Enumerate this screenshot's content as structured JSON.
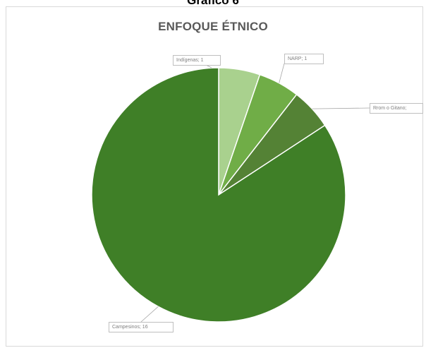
{
  "figure": {
    "caption": "Gráfico 6"
  },
  "chart_data": {
    "type": "pie",
    "title": "ENFOQUE ÉTNICO",
    "categories": [
      "Indígenas",
      "NARP",
      "Rrom o Gitano",
      "Campesinos"
    ],
    "values": [
      1,
      1,
      1,
      16
    ],
    "data_labels": [
      "Indígenas; 1",
      "NARP; 1",
      "Rrom o Gitano;",
      "Campesinos; 16"
    ],
    "colors": [
      "#a9d18e",
      "#70ad47",
      "#548235",
      "#3f7f27"
    ],
    "start_angle": "12 o'clock",
    "direction": "clockwise",
    "legend": "none"
  }
}
